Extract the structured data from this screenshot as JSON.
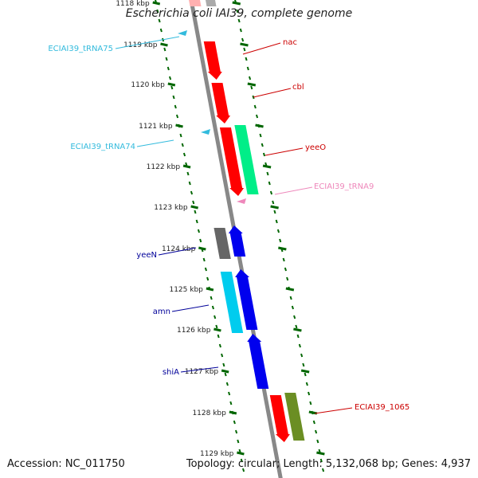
{
  "map": {
    "title": "Escherichia coli IAI39, complete genome",
    "accession_label": "Accession: NC_011750",
    "topology": "circular",
    "length": "5,132,068 bp",
    "genes": "4,937",
    "kbp_ticks": [
      "1118 kbp",
      "1119 kbp",
      "1120 kbp",
      "1121 kbp",
      "1122 kbp",
      "1123 kbp",
      "1124 kbp",
      "1125 kbp",
      "1126 kbp",
      "1127 kbp",
      "1128 kbp",
      "1129 kbp"
    ],
    "features": [
      {
        "name": "nac",
        "color": "#cc0000",
        "track": "outer"
      },
      {
        "name": "cbl",
        "color": "#cc0000",
        "track": "outer"
      },
      {
        "name": "yeeO",
        "color": "#cc0000",
        "track": "outer"
      },
      {
        "name": "ECIAI39_tRNA9",
        "color": "#ee88bb",
        "track": "outer"
      },
      {
        "name": "ECIAI39_1065",
        "color": "#cc0000",
        "track": "outer"
      },
      {
        "name": "ECIAI39_tRNA75",
        "color": "#33bbdd",
        "track": "inner"
      },
      {
        "name": "ECIAI39_tRNA74",
        "color": "#33bbdd",
        "track": "inner"
      },
      {
        "name": "yeeN",
        "color": "#000099",
        "track": "inner"
      },
      {
        "name": "amn",
        "color": "#000099",
        "track": "inner"
      },
      {
        "name": "shiA",
        "color": "#000099",
        "track": "inner"
      }
    ],
    "colors": {
      "forward_red": "#ff0000",
      "forward_green": "#00ee88",
      "olive": "#6b8e23",
      "grey_gene": "#666666",
      "blue_gene": "#0000ee",
      "cyan_gene": "#00ccee",
      "tick_green": "#006600",
      "backbone": "#888888"
    }
  }
}
